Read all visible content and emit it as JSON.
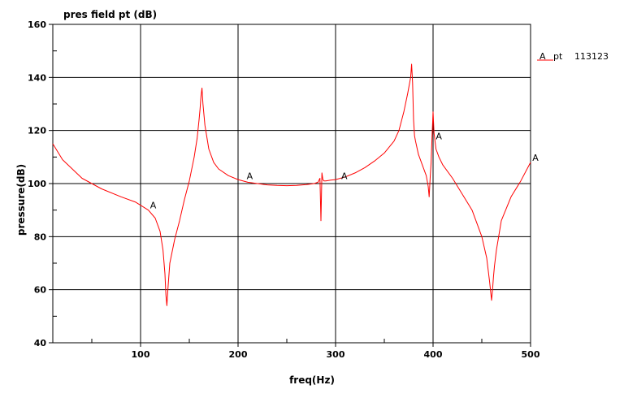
{
  "chart_data": {
    "type": "line",
    "title": "pres field pt (dB)",
    "xlabel": "freq(Hz)",
    "ylabel": "pressure(dB)",
    "xlim": [
      10,
      500
    ],
    "ylim": [
      40,
      160
    ],
    "x_ticks": [
      100,
      200,
      300,
      400,
      500
    ],
    "y_ticks": [
      40,
      60,
      80,
      100,
      120,
      140,
      160
    ],
    "x_tick_labels": [
      "100",
      "200",
      "300",
      "400",
      "500"
    ],
    "y_tick_labels": [
      "40",
      "60",
      "80",
      "100",
      "120",
      "140",
      "160"
    ],
    "grid": true,
    "legend": {
      "placement": "right",
      "marker": "A",
      "label": "pt",
      "value": "113123"
    },
    "series": [
      {
        "name": "pt",
        "color": "#ff0000",
        "marker": "A",
        "x": [
          10,
          20,
          40,
          60,
          80,
          95,
          108,
          115,
          120,
          123,
          125,
          126,
          127,
          128,
          130,
          135,
          140,
          145,
          150,
          155,
          158,
          160,
          161,
          162,
          163,
          164,
          166,
          170,
          175,
          180,
          190,
          200,
          210,
          220,
          230,
          240,
          250,
          260,
          270,
          278,
          282,
          284,
          285,
          286,
          287,
          288,
          290,
          295,
          300,
          310,
          320,
          330,
          340,
          350,
          360,
          365,
          370,
          374,
          377,
          378,
          379,
          380,
          381,
          382,
          385,
          390,
          393,
          395,
          396,
          397,
          398,
          399,
          400,
          401,
          403,
          406,
          410,
          420,
          430,
          440,
          450,
          455,
          458,
          460,
          461,
          462,
          463,
          465,
          470,
          480,
          490,
          500
        ],
        "y": [
          115,
          109,
          102,
          98,
          95,
          93,
          90,
          87,
          82,
          75,
          66,
          58,
          54,
          60,
          70,
          79,
          86,
          94,
          101,
          110,
          117,
          124,
          128,
          133,
          136,
          130,
          122,
          113,
          108,
          105.5,
          103,
          101.5,
          100.5,
          100,
          99.5,
          99.3,
          99.2,
          99.3,
          99.6,
          100,
          100.5,
          102,
          86,
          104,
          101.5,
          101,
          101,
          101.3,
          101.5,
          102.5,
          104,
          106,
          108.5,
          111.5,
          116,
          120,
          127,
          134,
          140,
          145,
          138,
          124,
          118,
          116,
          111,
          106,
          103,
          99,
          95,
          102,
          108,
          118,
          127,
          119,
          113,
          110,
          107,
          102,
          96,
          90,
          80,
          72,
          63,
          56,
          60,
          65,
          69,
          75,
          86,
          95,
          101,
          108
        ]
      }
    ],
    "annotations": [
      {
        "text": "A",
        "x": 109,
        "y": 90
      },
      {
        "text": "A",
        "x": 208,
        "y": 101
      },
      {
        "text": "A",
        "x": 305,
        "y": 101
      },
      {
        "text": "A",
        "x": 402,
        "y": 116
      },
      {
        "text": "A",
        "x": 501,
        "y": 108
      }
    ]
  }
}
